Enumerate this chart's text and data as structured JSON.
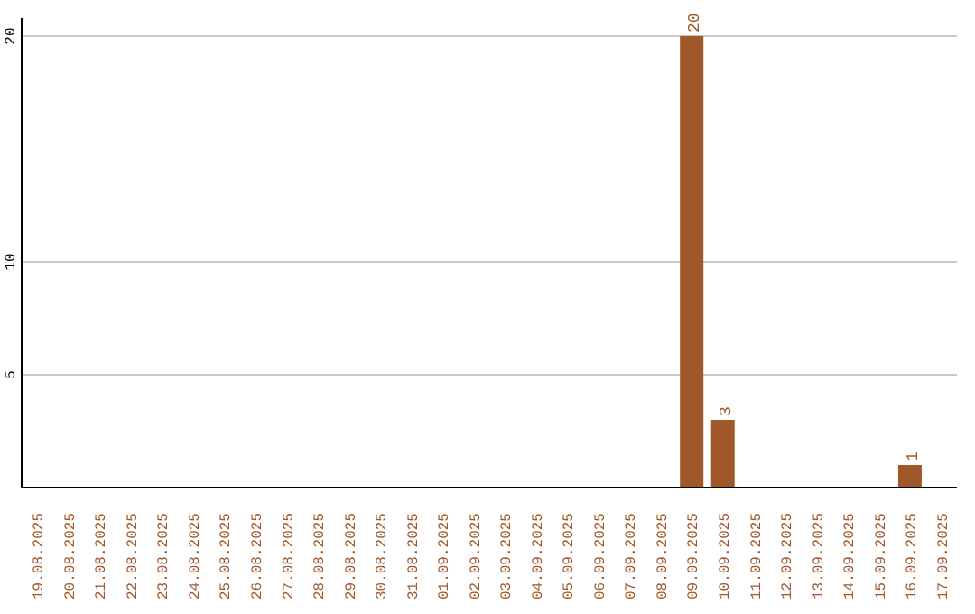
{
  "chart_data": {
    "type": "bar",
    "categories": [
      "19.08.2025",
      "20.08.2025",
      "21.08.2025",
      "22.08.2025",
      "23.08.2025",
      "24.08.2025",
      "25.08.2025",
      "26.08.2025",
      "27.08.2025",
      "28.08.2025",
      "29.08.2025",
      "30.08.2025",
      "31.08.2025",
      "01.09.2025",
      "02.09.2025",
      "03.09.2025",
      "04.09.2025",
      "05.09.2025",
      "06.09.2025",
      "07.09.2025",
      "08.09.2025",
      "09.09.2025",
      "10.09.2025",
      "11.09.2025",
      "12.09.2025",
      "13.09.2025",
      "14.09.2025",
      "15.09.2025",
      "16.09.2025",
      "17.09.2025"
    ],
    "values": [
      0,
      0,
      0,
      0,
      0,
      0,
      0,
      0,
      0,
      0,
      0,
      0,
      0,
      0,
      0,
      0,
      0,
      0,
      0,
      0,
      0,
      20,
      3,
      0,
      0,
      0,
      0,
      0,
      1,
      0
    ],
    "value_labels": [
      null,
      null,
      null,
      null,
      null,
      null,
      null,
      null,
      null,
      null,
      null,
      null,
      null,
      null,
      null,
      null,
      null,
      null,
      null,
      null,
      null,
      "20",
      "3",
      null,
      null,
      null,
      null,
      null,
      "1",
      null
    ],
    "color": "#a0582a",
    "ylim": [
      0,
      20.8
    ],
    "yticks": [
      5,
      10,
      20
    ],
    "grid": "y"
  }
}
